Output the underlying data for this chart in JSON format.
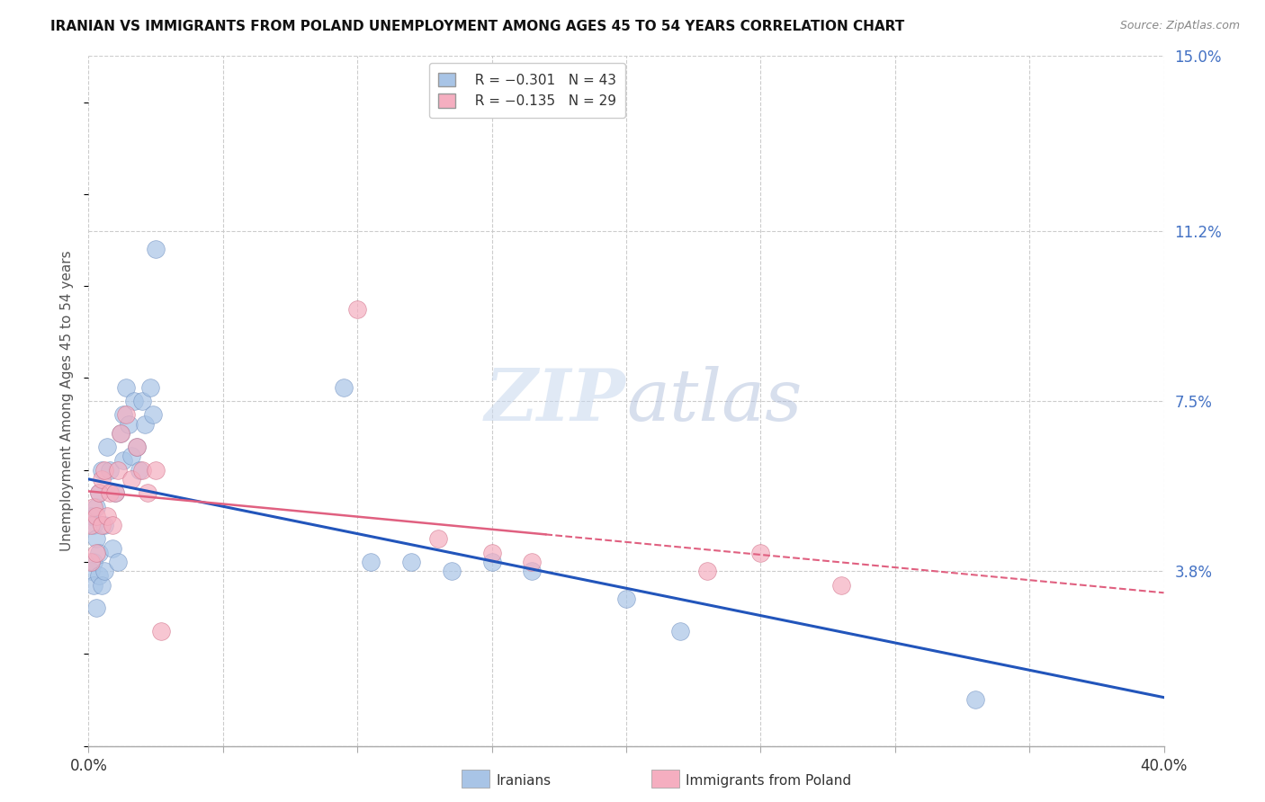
{
  "title": "IRANIAN VS IMMIGRANTS FROM POLAND UNEMPLOYMENT AMONG AGES 45 TO 54 YEARS CORRELATION CHART",
  "source": "Source: ZipAtlas.com",
  "ylabel": "Unemployment Among Ages 45 to 54 years",
  "xlim": [
    0.0,
    0.4
  ],
  "ylim": [
    0.0,
    0.15
  ],
  "xticks": [
    0.0,
    0.05,
    0.1,
    0.15,
    0.2,
    0.25,
    0.3,
    0.35,
    0.4
  ],
  "xticklabels": [
    "0.0%",
    "",
    "",
    "",
    "",
    "",
    "",
    "",
    "40.0%"
  ],
  "ytick_right": [
    0.0,
    0.038,
    0.075,
    0.112,
    0.15
  ],
  "ytick_right_labels": [
    "",
    "3.8%",
    "7.5%",
    "11.2%",
    "15.0%"
  ],
  "iranian_R": -0.301,
  "iranian_N": 43,
  "poland_R": -0.135,
  "poland_N": 29,
  "iranian_color": "#a8c4e6",
  "poland_color": "#f5aec0",
  "iran_edge_color": "#7090c0",
  "pol_edge_color": "#d07088",
  "iranian_line_color": "#2255bb",
  "poland_line_color": "#e06080",
  "background_color": "#ffffff",
  "grid_color": "#cccccc",
  "watermark_color": "#dde8f5",
  "iran_line_intercept": 0.058,
  "iran_line_slope": -0.1125,
  "pol_line_intercept": 0.051,
  "pol_line_slope": -0.034,
  "iran_x": [
    0.001,
    0.001,
    0.002,
    0.002,
    0.002,
    0.003,
    0.003,
    0.003,
    0.004,
    0.004,
    0.004,
    0.005,
    0.005,
    0.006,
    0.006,
    0.007,
    0.008,
    0.009,
    0.01,
    0.011,
    0.012,
    0.013,
    0.013,
    0.014,
    0.015,
    0.016,
    0.017,
    0.018,
    0.019,
    0.02,
    0.021,
    0.023,
    0.024,
    0.025,
    0.095,
    0.105,
    0.12,
    0.135,
    0.15,
    0.165,
    0.2,
    0.22,
    0.33
  ],
  "iran_y": [
    0.05,
    0.038,
    0.048,
    0.04,
    0.035,
    0.052,
    0.045,
    0.03,
    0.055,
    0.042,
    0.037,
    0.06,
    0.035,
    0.048,
    0.038,
    0.065,
    0.06,
    0.043,
    0.055,
    0.04,
    0.068,
    0.072,
    0.062,
    0.078,
    0.07,
    0.063,
    0.075,
    0.065,
    0.06,
    0.075,
    0.07,
    0.078,
    0.072,
    0.108,
    0.078,
    0.04,
    0.04,
    0.038,
    0.04,
    0.038,
    0.032,
    0.025,
    0.01
  ],
  "pol_x": [
    0.001,
    0.001,
    0.002,
    0.003,
    0.003,
    0.004,
    0.005,
    0.005,
    0.006,
    0.007,
    0.008,
    0.009,
    0.01,
    0.011,
    0.012,
    0.014,
    0.016,
    0.018,
    0.02,
    0.022,
    0.025,
    0.027,
    0.1,
    0.13,
    0.15,
    0.165,
    0.23,
    0.25,
    0.28
  ],
  "pol_y": [
    0.048,
    0.04,
    0.052,
    0.042,
    0.05,
    0.055,
    0.048,
    0.058,
    0.06,
    0.05,
    0.055,
    0.048,
    0.055,
    0.06,
    0.068,
    0.072,
    0.058,
    0.065,
    0.06,
    0.055,
    0.06,
    0.025,
    0.095,
    0.045,
    0.042,
    0.04,
    0.038,
    0.042,
    0.035
  ]
}
